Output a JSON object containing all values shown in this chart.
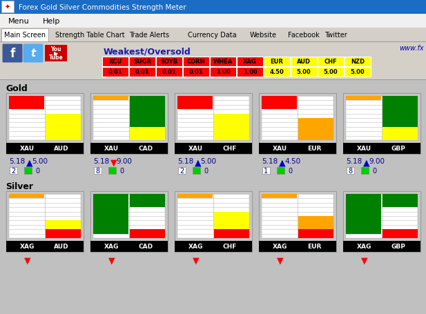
{
  "title_bar": "Forex Gold Silver Commodities Strength Meter",
  "title_bar_bg": "#1b6cc4",
  "menu_items": [
    "Menu",
    "Help"
  ],
  "tabs": [
    "Main Screen",
    "Strength Table Chart",
    "Trade Alerts",
    "Currency Data",
    "Website",
    "Facebook",
    "Twitter"
  ],
  "weakest_label": "Weakest/Oversold",
  "www_text": "www.fx",
  "table_headers_red": [
    "XCU",
    "SUGR",
    "SOYB",
    "CORN",
    "WHEA",
    "XAG"
  ],
  "table_values_red": [
    "0.01",
    "0.01",
    "0.01",
    "0.01",
    "1.00",
    "1.00"
  ],
  "table_headers_yellow": [
    "EUR",
    "AUD",
    "CHF",
    "NZD"
  ],
  "table_values_yellow": [
    "4.50",
    "5.00",
    "5.00",
    "5.00"
  ],
  "gold_label": "Gold",
  "silver_label": "Silver",
  "gold_pairs": [
    {
      "left": "XAU",
      "right": "AUD",
      "left_val": "5.18",
      "right_val": "5.00",
      "arrow": "up",
      "arrow_color": "#0000cc",
      "num1": "2",
      "num2": "0",
      "left_bars": [
        "red",
        "red",
        "red",
        "white",
        "white",
        "white",
        "white",
        "white",
        "white",
        "white"
      ],
      "right_bars": [
        "white",
        "white",
        "white",
        "white",
        "yellow",
        "yellow",
        "yellow",
        "yellow",
        "yellow",
        "yellow"
      ]
    },
    {
      "left": "XAU",
      "right": "CAD",
      "left_val": "5.18",
      "right_val": "9.00",
      "arrow": "down",
      "arrow_color": "red",
      "num1": "8",
      "num2": "0",
      "left_bars": [
        "orange",
        "white",
        "white",
        "white",
        "white",
        "white",
        "white",
        "white",
        "white",
        "white"
      ],
      "right_bars": [
        "green",
        "green",
        "green",
        "green",
        "green",
        "green",
        "green",
        "yellow",
        "yellow",
        "yellow"
      ]
    },
    {
      "left": "XAU",
      "right": "CHF",
      "left_val": "5.18",
      "right_val": "5.00",
      "arrow": "up",
      "arrow_color": "#0000cc",
      "num1": "2",
      "num2": "0",
      "left_bars": [
        "red",
        "red",
        "red",
        "white",
        "white",
        "white",
        "white",
        "white",
        "white",
        "white"
      ],
      "right_bars": [
        "white",
        "white",
        "white",
        "white",
        "yellow",
        "yellow",
        "yellow",
        "yellow",
        "yellow",
        "yellow"
      ]
    },
    {
      "left": "XAU",
      "right": "EUR",
      "left_val": "5.18",
      "right_val": "4.50",
      "arrow": "up",
      "arrow_color": "#0000cc",
      "num1": "1",
      "num2": "0",
      "left_bars": [
        "red",
        "red",
        "red",
        "white",
        "white",
        "white",
        "white",
        "white",
        "white",
        "white"
      ],
      "right_bars": [
        "white",
        "white",
        "white",
        "white",
        "white",
        "orange",
        "orange",
        "orange",
        "orange",
        "orange"
      ]
    },
    {
      "left": "XAU",
      "right": "GBP",
      "left_val": "5.18",
      "right_val": "9.00",
      "arrow": "up",
      "arrow_color": "#0000cc",
      "num1": "8",
      "num2": "0",
      "left_bars": [
        "orange",
        "white",
        "white",
        "white",
        "white",
        "white",
        "white",
        "white",
        "white",
        "white"
      ],
      "right_bars": [
        "green",
        "green",
        "green",
        "green",
        "green",
        "green",
        "green",
        "yellow",
        "yellow",
        "yellow"
      ]
    }
  ],
  "silver_pairs": [
    {
      "left": "XAG",
      "right": "AUD",
      "left_bars": [
        "orange",
        "white",
        "white",
        "white",
        "white",
        "white",
        "white",
        "white",
        "white",
        "white"
      ],
      "right_bars": [
        "white",
        "white",
        "white",
        "white",
        "white",
        "white",
        "yellow",
        "yellow",
        "red",
        "red"
      ]
    },
    {
      "left": "XAG",
      "right": "CAD",
      "left_bars": [
        "green",
        "green",
        "green",
        "green",
        "green",
        "green",
        "green",
        "green",
        "green",
        "white"
      ],
      "right_bars": [
        "green",
        "green",
        "green",
        "white",
        "white",
        "white",
        "white",
        "white",
        "red",
        "red"
      ]
    },
    {
      "left": "XAG",
      "right": "CHF",
      "left_bars": [
        "orange",
        "white",
        "white",
        "white",
        "white",
        "white",
        "white",
        "white",
        "white",
        "white"
      ],
      "right_bars": [
        "white",
        "white",
        "white",
        "white",
        "yellow",
        "yellow",
        "yellow",
        "yellow",
        "red",
        "red"
      ]
    },
    {
      "left": "XAG",
      "right": "EUR",
      "left_bars": [
        "orange",
        "white",
        "white",
        "white",
        "white",
        "white",
        "white",
        "white",
        "white",
        "white"
      ],
      "right_bars": [
        "white",
        "white",
        "white",
        "white",
        "white",
        "orange",
        "orange",
        "orange",
        "red",
        "red"
      ]
    },
    {
      "left": "XAG",
      "right": "GBP",
      "left_bars": [
        "green",
        "green",
        "green",
        "green",
        "green",
        "green",
        "green",
        "green",
        "green",
        "white"
      ],
      "right_bars": [
        "green",
        "green",
        "green",
        "white",
        "white",
        "white",
        "white",
        "white",
        "red",
        "red"
      ]
    }
  ]
}
